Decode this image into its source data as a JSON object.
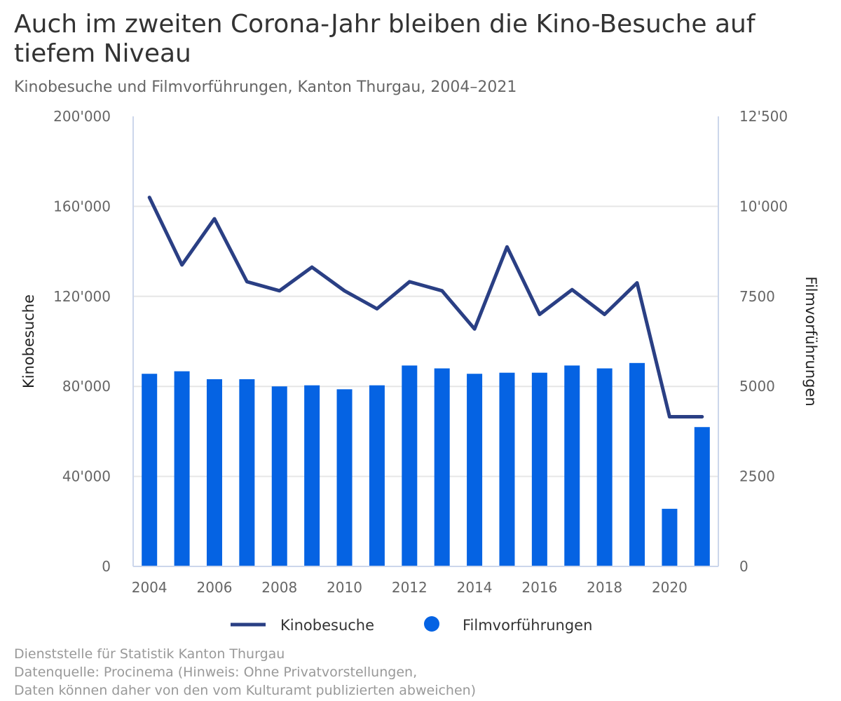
{
  "title": "Auch im zweiten Corona-Jahr bleiben die Kino-Besuche auf tiefem Niveau",
  "subtitle": "Kinobesuche und Filmvorführungen, Kanton Thurgau, 2004–2021",
  "credits": [
    "Dienststelle für Statistik Kanton Thurgau",
    "Datenquelle: Procinema (Hinweis: Ohne Privatvorstellungen,",
    "Daten können daher von den vom Kulturamt publizierten abweichen)"
  ],
  "colors": {
    "line": "#2a3f84",
    "bar": "#0563e3",
    "grid": "#e6e6e6"
  },
  "chart_data": {
    "type": "bar+line",
    "categories": [
      2004,
      2005,
      2006,
      2007,
      2008,
      2009,
      2010,
      2011,
      2012,
      2013,
      2014,
      2015,
      2016,
      2017,
      2018,
      2019,
      2020,
      2021
    ],
    "x_tick_labels": [
      "2004",
      "2006",
      "2008",
      "2010",
      "2012",
      "2014",
      "2016",
      "2018",
      "2020"
    ],
    "y_left": {
      "label": "Kinobesuche",
      "ylim": [
        0,
        200000
      ],
      "tick_labels": [
        "0",
        "40'000",
        "80'000",
        "120'000",
        "160'000",
        "200'000"
      ]
    },
    "y_right": {
      "label": "Filmvorführungen",
      "ylim": [
        0,
        12500
      ],
      "tick_labels": [
        "0",
        "2500",
        "5000",
        "7500",
        "10'000",
        "12'500"
      ]
    },
    "series": [
      {
        "name": "Kinobesuche",
        "type": "line",
        "axis": "left",
        "values": [
          164000,
          134000,
          154500,
          126500,
          122500,
          133000,
          122500,
          114500,
          126500,
          122500,
          105500,
          142000,
          112000,
          123000,
          112000,
          126000,
          66500,
          66500
        ]
      },
      {
        "name": "Filmvorführungen",
        "type": "bar",
        "axis": "right",
        "values": [
          5350,
          5420,
          5200,
          5200,
          5000,
          5030,
          4920,
          5030,
          5580,
          5500,
          5350,
          5380,
          5380,
          5580,
          5500,
          5650,
          1600,
          3870
        ]
      }
    ],
    "grid": true,
    "legend_position": "bottom-center"
  }
}
